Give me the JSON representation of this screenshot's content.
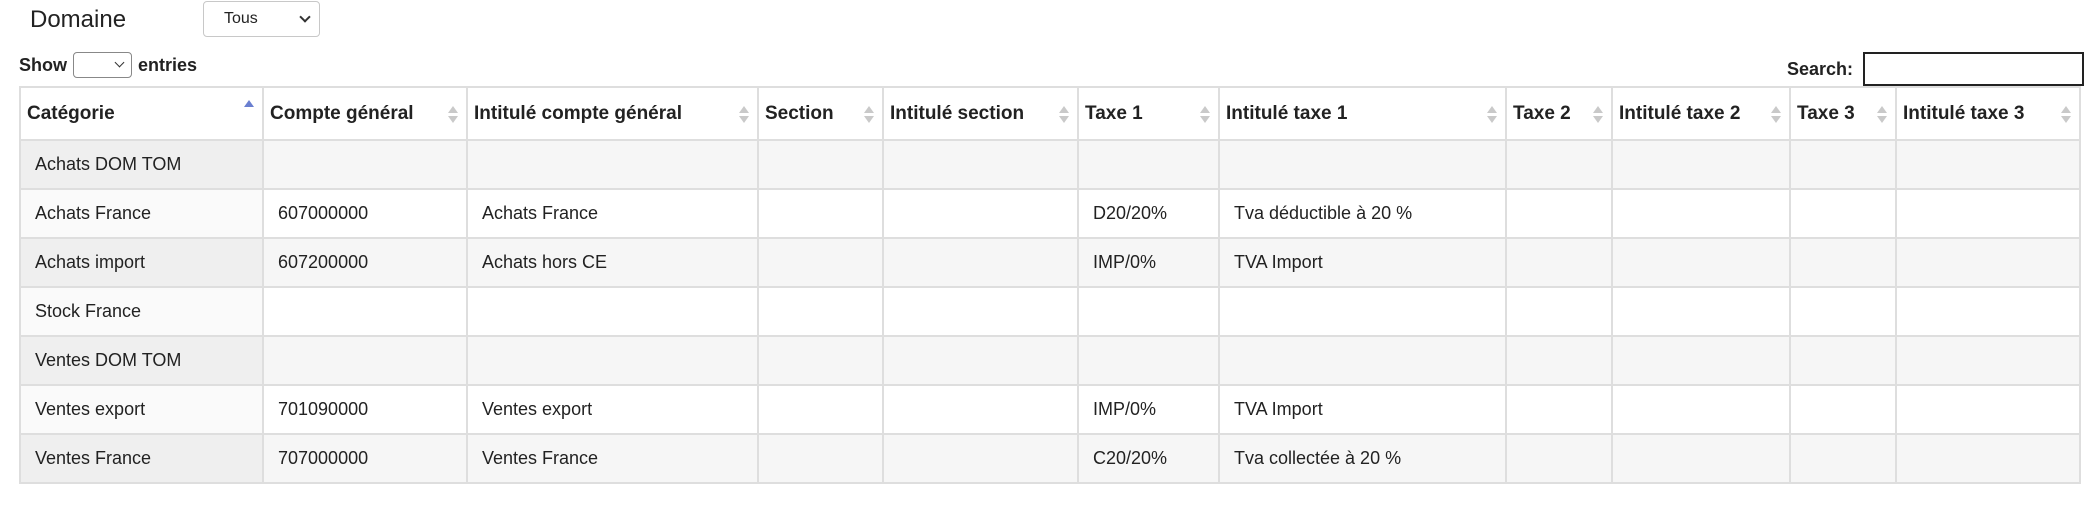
{
  "filter": {
    "domain_label": "Domaine",
    "domain_value": "Tous"
  },
  "length": {
    "prefix": "Show",
    "suffix": "entries",
    "value": ""
  },
  "search": {
    "label": "Search:",
    "value": ""
  },
  "table": {
    "columns": [
      "Catégorie",
      "Compte général",
      "Intitulé compte général",
      "Section",
      "Intitulé section",
      "Taxe 1",
      "Intitulé taxe 1",
      "Taxe 2",
      "Intitulé taxe 2",
      "Taxe 3",
      "Intitulé taxe 3"
    ],
    "sorted_column": "Catégorie",
    "sort_direction": "ascending",
    "rows": [
      [
        "Achats DOM TOM",
        "",
        "",
        "",
        "",
        "",
        "",
        "",
        "",
        "",
        ""
      ],
      [
        "Achats France",
        "607000000",
        "Achats France",
        "",
        "",
        "D20/20%",
        "Tva déductible à 20 %",
        "",
        "",
        "",
        ""
      ],
      [
        "Achats import",
        "607200000",
        "Achats hors CE",
        "",
        "",
        "IMP/0%",
        "TVA Import",
        "",
        "",
        "",
        ""
      ],
      [
        "Stock France",
        "",
        "",
        "",
        "",
        "",
        "",
        "",
        "",
        "",
        ""
      ],
      [
        "Ventes DOM TOM",
        "",
        "",
        "",
        "",
        "",
        "",
        "",
        "",
        "",
        ""
      ],
      [
        "Ventes export",
        "701090000",
        "Ventes export",
        "",
        "",
        "IMP/0%",
        "TVA Import",
        "",
        "",
        "",
        ""
      ],
      [
        "Ventes France",
        "707000000",
        "Ventes France",
        "",
        "",
        "C20/20%",
        "Tva collectée à 20 %",
        "",
        "",
        "",
        ""
      ]
    ]
  },
  "icons": {
    "sort": "sort-both-icon",
    "sort_asc": "sort-asc-icon",
    "dropdown": "chevron-down-icon"
  }
}
